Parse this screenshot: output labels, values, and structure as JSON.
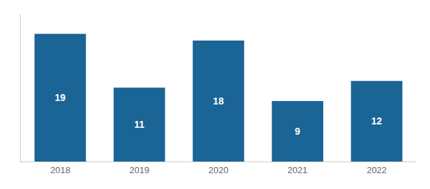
{
  "chart_data": {
    "type": "bar",
    "categories": [
      "2018",
      "2019",
      "2020",
      "2021",
      "2022"
    ],
    "values": [
      19,
      11,
      18,
      9,
      12
    ],
    "color": "#1a6496",
    "ylim": [
      0,
      22
    ],
    "data_labels": true,
    "tick_labels": "x",
    "grid": false
  }
}
